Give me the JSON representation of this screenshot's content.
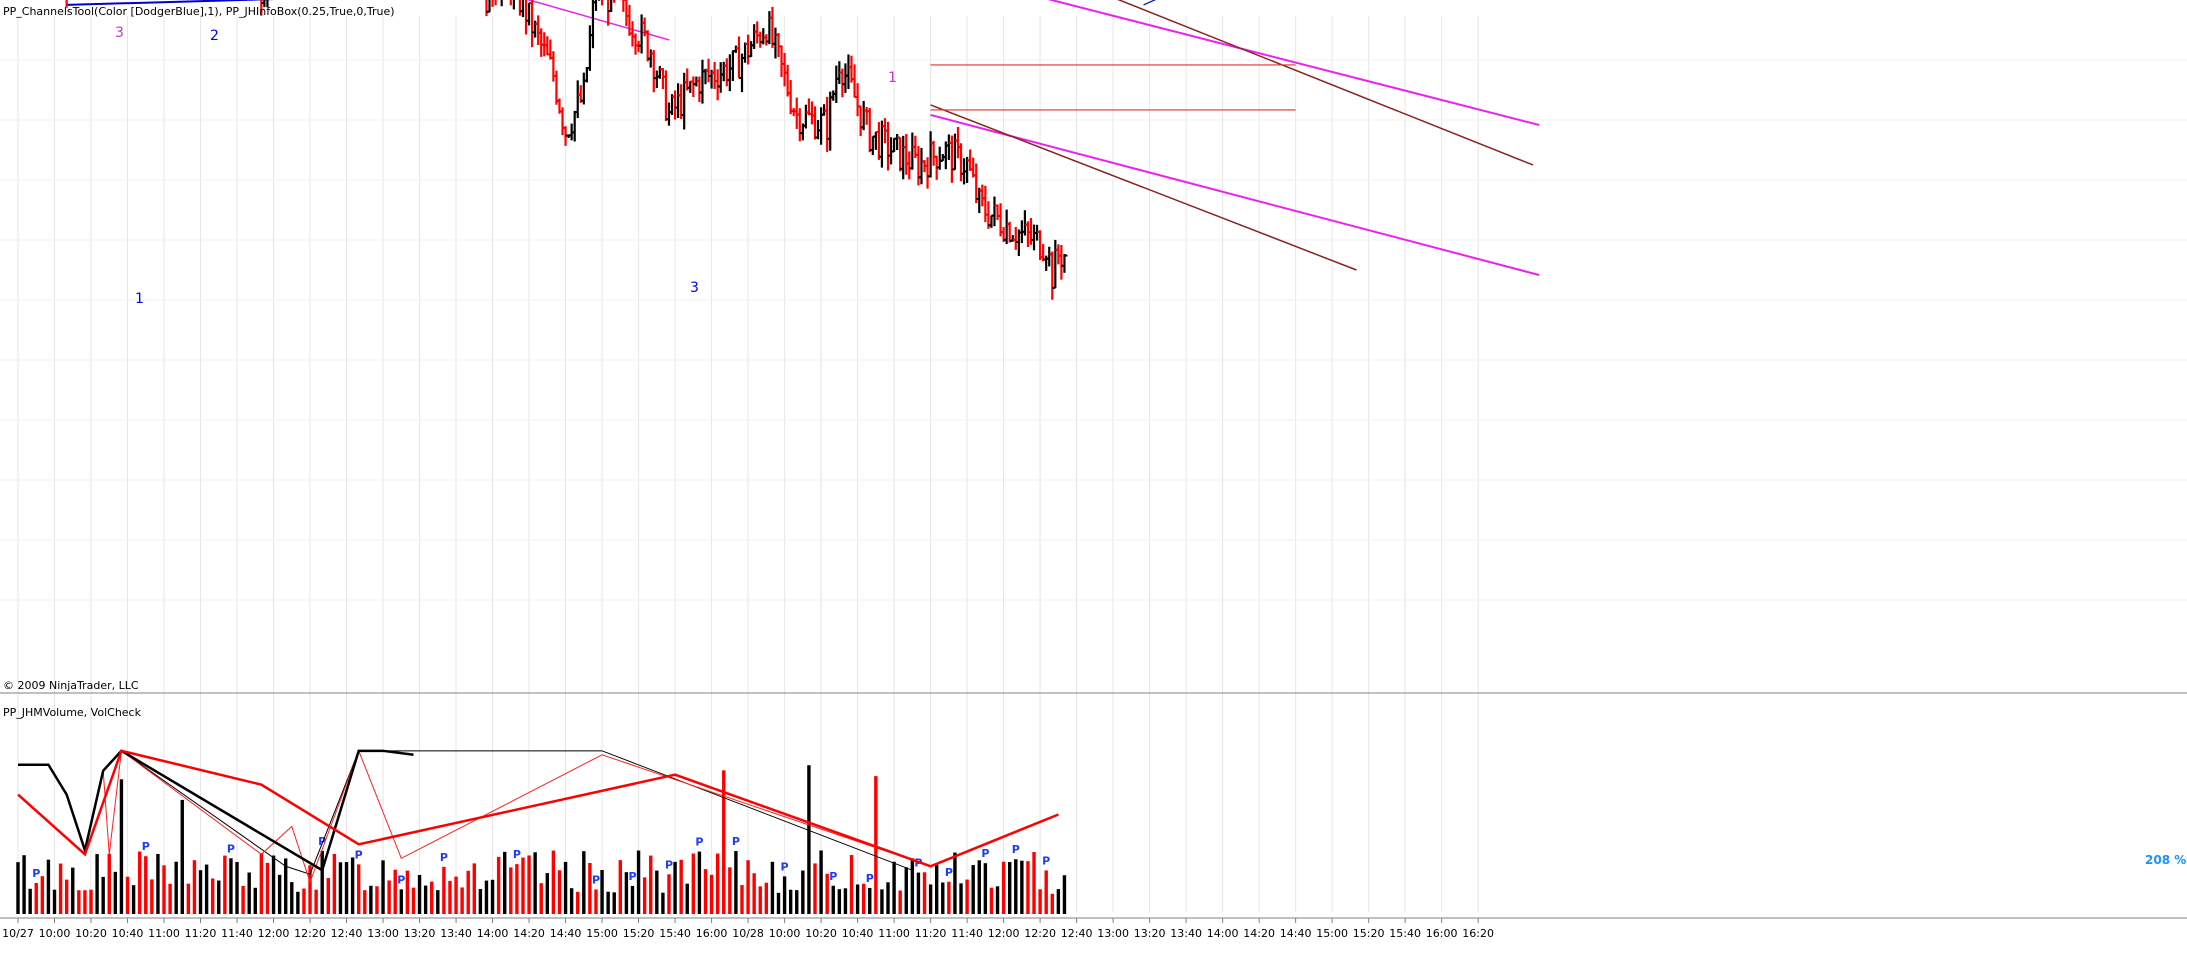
{
  "header": {
    "price_panel_title": "PP_ChannelsTool(Color [DodgerBlue],1),  PP_JHInfoBox(0.25,True,0,True)",
    "volume_panel_title": "PP_JHMVolume, VolCheck",
    "copyright": "© 2009 NinjaTrader, LLC",
    "volume_percent": "208 % ["
  },
  "colors": {
    "up_bar": "#000000",
    "down_bar": "#ff0000",
    "channel_outer": "#0000cd",
    "channel_magenta": "#ee20ee",
    "channel_brown": "#8b2020",
    "marker_blue": "#0000ff",
    "marker_magenta": "#cc33cc",
    "pivot_P": "#1e3cff",
    "grid": "#e6e6e6",
    "percent_text": "#1e90ff"
  },
  "annotations": [
    {
      "label": "3",
      "color_key": "marker_magenta",
      "bar": 10
    },
    {
      "label": "2",
      "color_key": "marker_blue",
      "bar": 24
    },
    {
      "label": "1",
      "color_key": "marker_blue",
      "bar": 16
    },
    {
      "label": "3",
      "color_key": "marker_blue",
      "bar": 79
    },
    {
      "label": "1",
      "color_key": "marker_magenta",
      "bar": 110
    }
  ],
  "chart_data": [
    {
      "type": "line",
      "title": "",
      "description_of_type": "OHLC bar chart",
      "xlabel": "",
      "ylabel": "",
      "grid": true,
      "x_tick_labels": [
        "10/27",
        "10:00",
        "10:20",
        "10:40",
        "11:00",
        "11:20",
        "11:40",
        "12:00",
        "12:20",
        "12:40",
        "13:00",
        "13:20",
        "13:40",
        "14:00",
        "14:20",
        "14:40",
        "15:00",
        "15:20",
        "15:40",
        "16:00",
        "10/28",
        "10:00",
        "10:20",
        "10:40",
        "11:00",
        "11:20",
        "11:40",
        "12:00",
        "12:20",
        "12:40",
        "13:00",
        "13:20",
        "13:40",
        "14:00",
        "14:20",
        "14:40",
        "15:00",
        "15:20",
        "15:40",
        "16:00",
        "16:20"
      ],
      "x_tick_bars": [
        0,
        12,
        24,
        36,
        48,
        60,
        72,
        84,
        96,
        108,
        120,
        132,
        144,
        156,
        168,
        180,
        192,
        204,
        216,
        228,
        240,
        252,
        264,
        276,
        288,
        300,
        312,
        324,
        336,
        348,
        360,
        372,
        384,
        396,
        408,
        420,
        432,
        444,
        456,
        468,
        480
      ],
      "ylim": [
        0,
        100
      ],
      "close_path_keypoints": [
        [
          0,
          78
        ],
        [
          5,
          88
        ],
        [
          10,
          80
        ],
        [
          16,
          43
        ],
        [
          20,
          74
        ],
        [
          24,
          90
        ],
        [
          30,
          76
        ],
        [
          40,
          84
        ],
        [
          50,
          78
        ],
        [
          64,
          72
        ],
        [
          74,
          58
        ],
        [
          80,
          45
        ],
        [
          86,
          57
        ],
        [
          96,
          70
        ],
        [
          104,
          66
        ],
        [
          110,
          82
        ],
        [
          118,
          70
        ],
        [
          126,
          52
        ],
        [
          132,
          58
        ],
        [
          140,
          65
        ],
        [
          148,
          56
        ],
        [
          150,
          68
        ],
        [
          154,
          44
        ],
        [
          160,
          48
        ],
        [
          166,
          42
        ],
        [
          176,
          28
        ],
        [
          180,
          17
        ],
        [
          186,
          24
        ],
        [
          190,
          46
        ],
        [
          200,
          40
        ],
        [
          208,
          33
        ],
        [
          214,
          20
        ],
        [
          224,
          27
        ],
        [
          236,
          30
        ],
        [
          246,
          38
        ],
        [
          256,
          20
        ],
        [
          266,
          18
        ],
        [
          270,
          31
        ],
        [
          280,
          16
        ],
        [
          290,
          12
        ],
        [
          296,
          10
        ],
        [
          304,
          13
        ],
        [
          312,
          10
        ],
        [
          316,
          2
        ],
        [
          320,
          0
        ],
        [
          330,
          -4
        ],
        [
          338,
          -6
        ],
        [
          340,
          -12
        ],
        [
          342,
          -8
        ]
      ],
      "bars_note": "Intraday OHLC bars 10/27–10/28; up bars black, down bars red"
    },
    {
      "type": "bar",
      "title": "",
      "xlabel": "",
      "ylabel": "",
      "ylim": [
        0,
        100
      ],
      "bars_note": "Volume per bar; pivot markers labelled P",
      "pivot_label": "P",
      "pivot_bars": [
        6,
        42,
        70,
        100,
        112,
        126,
        140,
        164,
        190,
        202,
        214,
        224,
        236,
        252,
        268,
        280,
        296,
        306,
        318,
        328,
        338
      ],
      "zigzag_heavy_red_pivots": [
        [
          0,
          60
        ],
        [
          22,
          30
        ],
        [
          34,
          82
        ],
        [
          80,
          65
        ],
        [
          112,
          35
        ],
        [
          216,
          70
        ],
        [
          300,
          24
        ],
        [
          342,
          50
        ]
      ],
      "zigzag_heavy_black_pivots": [
        [
          0,
          75
        ],
        [
          10,
          75
        ],
        [
          16,
          60
        ],
        [
          22,
          32
        ],
        [
          28,
          72
        ],
        [
          34,
          82
        ],
        [
          100,
          22
        ],
        [
          112,
          82
        ],
        [
          120,
          82
        ],
        [
          130,
          80
        ]
      ],
      "zigzag_thin_red_pivots": [
        [
          28,
          72
        ],
        [
          30,
          30
        ],
        [
          34,
          82
        ],
        [
          80,
          30
        ],
        [
          90,
          44
        ],
        [
          96,
          16
        ],
        [
          112,
          82
        ],
        [
          126,
          28
        ],
        [
          192,
          80
        ],
        [
          300,
          24
        ]
      ],
      "zigzag_thin_black_pivots": [
        [
          34,
          82
        ],
        [
          88,
          24
        ],
        [
          96,
          20
        ],
        [
          112,
          82
        ],
        [
          192,
          82
        ],
        [
          294,
          22
        ]
      ]
    }
  ]
}
